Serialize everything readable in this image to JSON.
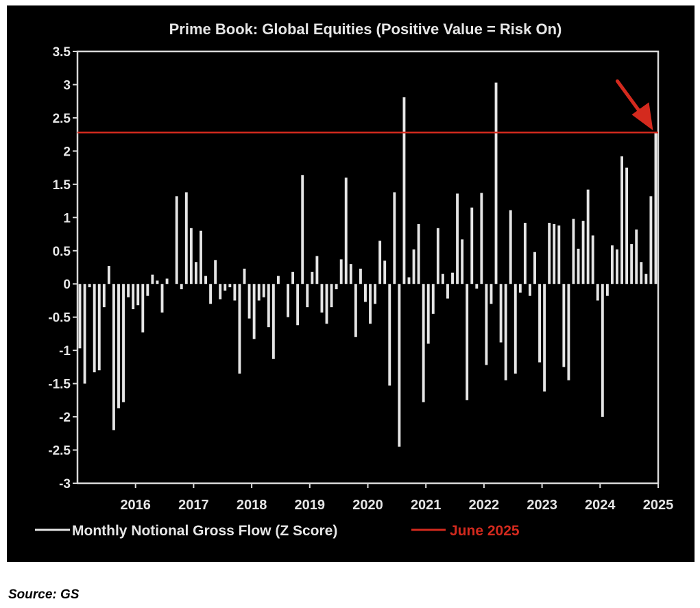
{
  "chart_data": {
    "type": "bar",
    "title": "Prime Book: Global Equities (Positive Value = Risk On)",
    "ylim": [
      -3,
      3.5
    ],
    "yticks": [
      "3.5",
      "3",
      "2.5",
      "2",
      "1.5",
      "1",
      "0.5",
      "0",
      "-0.5",
      "-1",
      "-1.5",
      "-2",
      "-2.5",
      "-3"
    ],
    "xticks": [
      "2016",
      "2017",
      "2018",
      "2019",
      "2020",
      "2021",
      "2022",
      "2023",
      "2024",
      "2025"
    ],
    "x_range": [
      "2015-07",
      "2025-06"
    ],
    "grid": false,
    "legend_position": "bottom",
    "series": [
      {
        "name": "Monthly Notional Gross Flow (Z Score)",
        "color": "#e6e6e6",
        "start": "2015-07",
        "values": [
          -0.97,
          -1.5,
          -0.05,
          -1.33,
          -1.3,
          -0.35,
          0.27,
          -2.2,
          -1.87,
          -1.78,
          -0.2,
          -0.38,
          -0.32,
          -0.73,
          -0.18,
          0.14,
          0.05,
          -0.43,
          0.08,
          0.0,
          1.32,
          -0.08,
          1.38,
          0.84,
          0.33,
          0.8,
          0.12,
          -0.3,
          0.36,
          -0.23,
          -0.1,
          -0.05,
          -0.25,
          -1.35,
          0.23,
          -0.52,
          -0.83,
          -0.25,
          -0.2,
          -0.65,
          -1.13,
          0.12,
          0.0,
          -0.5,
          0.18,
          -0.62,
          1.64,
          -0.35,
          0.18,
          0.42,
          -0.43,
          -0.6,
          -0.35,
          -0.08,
          0.37,
          1.6,
          0.3,
          -0.8,
          0.23,
          -0.27,
          -0.6,
          -0.3,
          0.65,
          0.35,
          -1.53,
          1.38,
          -2.45,
          2.81,
          0.1,
          0.52,
          0.9,
          -1.78,
          -0.9,
          -0.45,
          0.84,
          0.15,
          -0.22,
          0.17,
          1.36,
          0.67,
          -1.75,
          1.15,
          -0.07,
          1.37,
          -1.22,
          -0.3,
          3.03,
          -0.88,
          -1.45,
          1.11,
          -1.35,
          -0.13,
          0.92,
          -0.18,
          0.48,
          -1.18,
          -1.62,
          0.92,
          0.9,
          0.88,
          -1.25,
          -1.45,
          0.98,
          0.53,
          0.95,
          1.42,
          0.73,
          -0.25,
          -2.0,
          -0.18,
          0.58,
          0.52,
          1.92,
          1.75,
          0.6,
          0.82,
          0.33,
          0.15,
          1.32,
          2.28
        ]
      },
      {
        "name": "June 2025",
        "color": "#d42a1e",
        "kind": "horizontal-line",
        "value": 2.28
      }
    ],
    "annotations": [
      {
        "kind": "arrow",
        "color": "#d42a1e",
        "target": "2025-06"
      }
    ]
  },
  "source_note": "Source: GS"
}
